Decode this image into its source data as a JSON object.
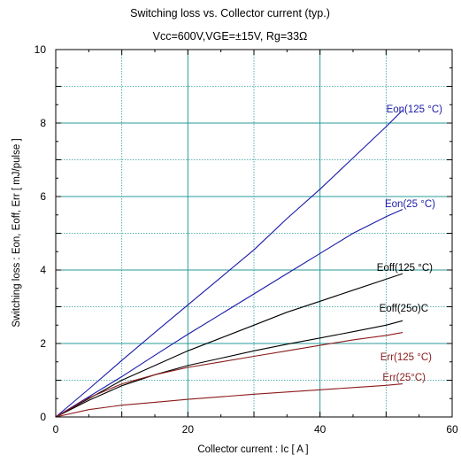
{
  "chart_data": {
    "type": "line",
    "title": "Switching loss  vs.  Collector current  (typ.)",
    "subtitle": "Vcc=600V,VGE=±15V, Rg=33Ω",
    "xlabel": "Collector current  :  Ic  [ A ]",
    "ylabel": "Switching loss  :  Eon, Eoff,  Err  [ mJ/pulse ]",
    "xlim": [
      0,
      60
    ],
    "ylim": [
      0,
      10
    ],
    "x_ticks": [
      "0",
      "20",
      "40",
      "60"
    ],
    "y_ticks": [
      "0",
      "2",
      "4",
      "6",
      "8",
      "10"
    ],
    "grid": true,
    "colors": {
      "blue": "#1a1aa8",
      "black": "#000000",
      "red": "#8b1a1a",
      "grid": "#2a9a9a"
    },
    "series": [
      {
        "name": "Eon(125 °C)",
        "color": "blue",
        "x": [
          0,
          5,
          10,
          15,
          20,
          25,
          30,
          35,
          40,
          45,
          50,
          52.5
        ],
        "y": [
          0,
          0.76,
          1.54,
          2.3,
          3.05,
          3.8,
          4.55,
          5.4,
          6.2,
          7.05,
          7.9,
          8.35
        ]
      },
      {
        "name": "Eon(25 °C)",
        "color": "blue",
        "x": [
          0,
          5,
          10,
          15,
          20,
          25,
          30,
          35,
          40,
          45,
          50,
          52.5
        ],
        "y": [
          0,
          0.55,
          1.1,
          1.68,
          2.25,
          2.8,
          3.35,
          3.9,
          4.45,
          5.0,
          5.45,
          5.65
        ]
      },
      {
        "name": "Eoff(125 °C)",
        "color": "black",
        "x": [
          0,
          5,
          10,
          15,
          20,
          25,
          30,
          35,
          40,
          45,
          50,
          52.5
        ],
        "y": [
          0,
          0.5,
          1.0,
          1.4,
          1.8,
          2.15,
          2.5,
          2.85,
          3.15,
          3.45,
          3.75,
          3.9
        ]
      },
      {
        "name": "Eoff(25o)C",
        "color": "black",
        "x": [
          0,
          5,
          10,
          15,
          20,
          25,
          30,
          35,
          40,
          45,
          50,
          52.5
        ],
        "y": [
          0,
          0.45,
          0.85,
          1.15,
          1.4,
          1.6,
          1.8,
          1.98,
          2.15,
          2.32,
          2.5,
          2.62
        ]
      },
      {
        "name": "Err(125 °C)",
        "color": "red",
        "x": [
          0,
          5,
          10,
          15,
          20,
          25,
          30,
          35,
          40,
          45,
          50,
          52.5
        ],
        "y": [
          0,
          0.52,
          0.9,
          1.15,
          1.35,
          1.5,
          1.65,
          1.8,
          1.95,
          2.1,
          2.22,
          2.3
        ]
      },
      {
        "name": "Err(25°C)",
        "color": "red",
        "x": [
          0,
          5,
          10,
          15,
          20,
          25,
          30,
          35,
          40,
          45,
          50,
          52.5
        ],
        "y": [
          0,
          0.2,
          0.32,
          0.4,
          0.48,
          0.55,
          0.62,
          0.68,
          0.74,
          0.8,
          0.86,
          0.9
        ]
      }
    ]
  }
}
